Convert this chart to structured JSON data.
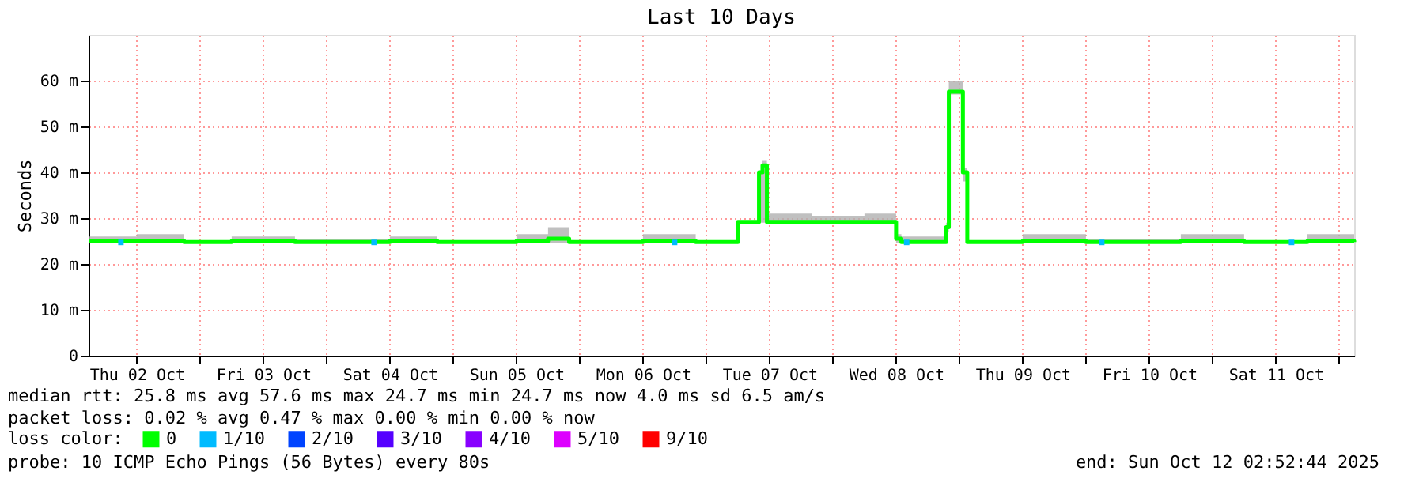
{
  "chart_data": {
    "type": "step",
    "title": "Last 10 Days",
    "ylabel": "Seconds",
    "legend_title": "loss color:",
    "legend": "bottom",
    "grid": true,
    "x": [
      "2025-10-02T02:52",
      "2025-10-02T12:00",
      "2025-10-02T21:00",
      "2025-10-03T06:00",
      "2025-10-03T18:00",
      "2025-10-04T12:00",
      "2025-10-04T21:00",
      "2025-10-05T12:00",
      "2025-10-05T18:00",
      "2025-10-05T22:00",
      "2025-10-06T12:00",
      "2025-10-06T22:00",
      "2025-10-07T06:00",
      "2025-10-07T10:00",
      "2025-10-07T10:40",
      "2025-10-07T11:30",
      "2025-10-07T20:00",
      "2025-10-08T06:00",
      "2025-10-08T12:00",
      "2025-10-08T13:00",
      "2025-10-08T21:30",
      "2025-10-08T22:00",
      "2025-10-09T00:40",
      "2025-10-09T01:30",
      "2025-10-09T12:00",
      "2025-10-10T00:00",
      "2025-10-10T18:00",
      "2025-10-11T06:00",
      "2025-10-11T18:00",
      "2025-10-12T02:52"
    ],
    "series": [
      {
        "name": "0",
        "color": "#00ff00",
        "values": [
          25.0,
          25.0,
          24.8,
          25.0,
          24.8,
          25.0,
          24.8,
          25.0,
          25.5,
          24.8,
          25.0,
          24.8,
          29.2,
          40.0,
          41.5,
          29.2,
          29.2,
          29.2,
          25.5,
          24.8,
          28.0,
          57.6,
          40.0,
          24.8,
          25.0,
          24.8,
          25.0,
          24.8,
          25.0,
          24.8
        ],
        "lower": [
          24.6,
          24.6,
          24.6,
          24.6,
          24.6,
          24.6,
          24.6,
          24.6,
          24.6,
          24.6,
          24.6,
          24.6,
          28.8,
          29.0,
          29.0,
          28.8,
          28.8,
          28.8,
          24.6,
          24.6,
          27.0,
          57.0,
          38.0,
          24.6,
          24.6,
          24.6,
          24.6,
          24.6,
          24.6,
          24.6
        ],
        "upper": [
          26.0,
          26.5,
          25.0,
          26.0,
          25.5,
          26.0,
          25.0,
          26.5,
          28.0,
          25.0,
          26.5,
          25.0,
          29.5,
          40.0,
          42.5,
          31.0,
          30.5,
          31.0,
          26.5,
          26.0,
          29.0,
          60.0,
          41.0,
          25.0,
          26.5,
          25.5,
          26.5,
          25.0,
          26.5,
          25.0
        ]
      },
      {
        "name": "1/10",
        "color": "#00bbff",
        "type": "scatter",
        "x": [
          "2025-10-02T09:00",
          "2025-10-04T09:00",
          "2025-10-06T18:00",
          "2025-10-08T14:00",
          "2025-10-10T03:00",
          "2025-10-11T15:00"
        ],
        "values": [
          24.7,
          24.7,
          24.7,
          24.7,
          24.7,
          24.7
        ]
      },
      {
        "name": "2/10",
        "color": "#0044ff",
        "type": "scatter",
        "values": [
          null,
          null,
          null,
          null,
          null,
          null,
          null,
          null,
          null,
          null,
          null,
          null,
          null,
          null,
          null,
          null,
          null,
          null,
          null,
          null,
          null,
          null,
          null,
          null,
          null,
          null,
          null,
          null,
          null,
          null
        ]
      },
      {
        "name": "3/10",
        "color": "#5500ff",
        "type": "scatter",
        "values": [
          null,
          null,
          null,
          null,
          null,
          null,
          null,
          null,
          null,
          null,
          null,
          null,
          null,
          null,
          null,
          null,
          null,
          null,
          null,
          null,
          null,
          null,
          null,
          null,
          null,
          null,
          null,
          null,
          null,
          null
        ]
      },
      {
        "name": "4/10",
        "color": "#8800ff",
        "type": "scatter",
        "values": [
          null,
          null,
          null,
          null,
          null,
          null,
          null,
          null,
          null,
          null,
          null,
          null,
          null,
          null,
          null,
          null,
          null,
          null,
          null,
          null,
          null,
          null,
          null,
          null,
          null,
          null,
          null,
          null,
          null,
          null
        ]
      },
      {
        "name": "5/10",
        "color": "#dd00ff",
        "type": "scatter",
        "values": [
          null,
          null,
          null,
          null,
          null,
          null,
          null,
          null,
          null,
          null,
          null,
          null,
          null,
          null,
          null,
          null,
          null,
          null,
          null,
          null,
          null,
          null,
          null,
          null,
          null,
          null,
          null,
          null,
          null,
          null
        ]
      },
      {
        "name": "9/10",
        "color": "#ff0000",
        "type": "scatter",
        "values": [
          null,
          null,
          null,
          null,
          null,
          null,
          null,
          null,
          null,
          null,
          null,
          null,
          null,
          null,
          null,
          null,
          null,
          null,
          null,
          null,
          null,
          null,
          null,
          null,
          null,
          null,
          null,
          null,
          null,
          null
        ]
      }
    ],
    "xlim": [
      "2025-10-02T02:52",
      "2025-10-12T02:52"
    ],
    "xticks": [
      {
        "value": "2025-10-02T12:00",
        "label": "Thu 02 Oct"
      },
      {
        "value": "2025-10-03T00:00",
        "label": null
      },
      {
        "value": "2025-10-03T12:00",
        "label": "Fri 03 Oct"
      },
      {
        "value": "2025-10-04T00:00",
        "label": null
      },
      {
        "value": "2025-10-04T12:00",
        "label": "Sat 04 Oct"
      },
      {
        "value": "2025-10-05T00:00",
        "label": null
      },
      {
        "value": "2025-10-05T12:00",
        "label": "Sun 05 Oct"
      },
      {
        "value": "2025-10-06T00:00",
        "label": null
      },
      {
        "value": "2025-10-06T12:00",
        "label": "Mon 06 Oct"
      },
      {
        "value": "2025-10-07T00:00",
        "label": null
      },
      {
        "value": "2025-10-07T12:00",
        "label": "Tue 07 Oct"
      },
      {
        "value": "2025-10-08T00:00",
        "label": null
      },
      {
        "value": "2025-10-08T12:00",
        "label": "Wed 08 Oct"
      },
      {
        "value": "2025-10-09T00:00",
        "label": null
      },
      {
        "value": "2025-10-09T12:00",
        "label": "Thu 09 Oct"
      },
      {
        "value": "2025-10-10T00:00",
        "label": null
      },
      {
        "value": "2025-10-10T12:00",
        "label": "Fri 10 Oct"
      },
      {
        "value": "2025-10-11T00:00",
        "label": null
      },
      {
        "value": "2025-10-11T12:00",
        "label": "Sat 11 Oct"
      },
      {
        "value": "2025-10-12T00:00",
        "label": null
      }
    ],
    "ylim": [
      0,
      70
    ],
    "yticks": [
      0,
      {
        "value": 10,
        "label": "10 m"
      },
      {
        "value": 20,
        "label": "20 m"
      },
      {
        "value": 30,
        "label": "30 m"
      },
      {
        "value": 40,
        "label": "40 m"
      },
      {
        "value": 50,
        "label": "50 m"
      },
      {
        "value": 60,
        "label": "60 m"
      }
    ],
    "annotations": [
      "median rtt:  25.8 ms avg  57.6 ms max  24.7 ms min  24.7 ms now  4.0 ms sd  6.5   am/s",
      "packet loss: 0.02 % avg  0.47 % max  0.00 % min  0.00 % now",
      "probe:       10 ICMP Echo Pings (56 Bytes) every 80s",
      "end: Sun Oct 12 02:52:44 2025"
    ]
  }
}
